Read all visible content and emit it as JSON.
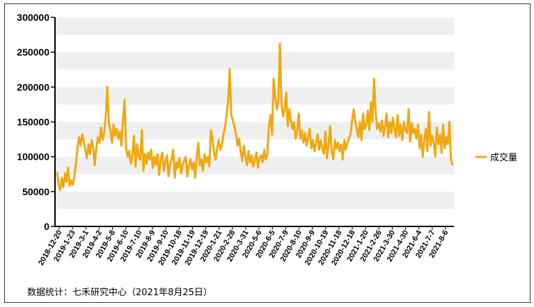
{
  "source_note": "数据统计：七禾研究中心（2021年8月25日）",
  "colors": {
    "series": "#f0a811",
    "band": "#efefef",
    "axis": "#000000"
  },
  "chart_data": {
    "type": "line",
    "title": "",
    "xlabel": "",
    "ylabel": "",
    "ylim": [
      0,
      300000
    ],
    "yticks": [
      "0",
      "50000",
      "100000",
      "150000",
      "200000",
      "250000",
      "300000"
    ],
    "xtick_labels": [
      "2018-12-20",
      "2019-1-23",
      "2019-3-1",
      "2019-4-2",
      "2019-5-8",
      "2019-6-10",
      "2019-7-10",
      "2019-8-9",
      "2019-9-10",
      "2019-10-18",
      "2019-11-19",
      "2019-12-19",
      "2020-1-21",
      "2020-2-28",
      "2020-3-31",
      "2020-5-6",
      "2020-6-5",
      "2020-7-9",
      "2020-8-10",
      "2020-9-9",
      "2020-10-19",
      "2020-11-18",
      "2020-12-18",
      "2021-1-20",
      "2021-2-26",
      "2021-3-30",
      "2021-4-30",
      "2021-6-4",
      "2021-7-7",
      "2021-8-6"
    ],
    "legend": "right",
    "grid": "horizontal bands",
    "series": [
      {
        "name": "成交量",
        "values": [
          78000,
          60000,
          52000,
          70000,
          56000,
          76000,
          64000,
          84000,
          58000,
          66000,
          60000,
          72000,
          90000,
          112000,
          128000,
          116000,
          132000,
          122000,
          110000,
          98000,
          118000,
          104000,
          124000,
          114000,
          88000,
          112000,
          128000,
          120000,
          142000,
          124000,
          134000,
          158000,
          200000,
          148000,
          138000,
          120000,
          146000,
          130000,
          140000,
          126000,
          136000,
          116000,
          152000,
          182000,
          112000,
          100000,
          108000,
          90000,
          102000,
          130000,
          86000,
          118000,
          100000,
          96000,
          138000,
          80000,
          104000,
          90000,
          106000,
          96000,
          110000,
          84000,
          100000,
          88000,
          104000,
          74000,
          96000,
          106000,
          80000,
          92000,
          102000,
          72000,
          90000,
          96000,
          110000,
          70000,
          92000,
          84000,
          98000,
          76000,
          88000,
          94000,
          100000,
          72000,
          86000,
          96000,
          82000,
          92000,
          70000,
          100000,
          120000,
          88000,
          96000,
          80000,
          104000,
          92000,
          100000,
          86000,
          138000,
          126000,
          106000,
          96000,
          112000,
          124000,
          110000,
          116000,
          132000,
          142000,
          160000,
          180000,
          226000,
          160000,
          152000,
          144000,
          132000,
          116000,
          126000,
          108000,
          94000,
          116000,
          100000,
          88000,
          108000,
          92000,
          102000,
          86000,
          96000,
          106000,
          84000,
          98000,
          102000,
          92000,
          110000,
          96000,
          104000,
          144000,
          160000,
          132000,
          212000,
          186000,
          168000,
          178000,
          262000,
          176000,
          158000,
          168000,
          192000,
          144000,
          168000,
          152000,
          140000,
          150000,
          126000,
          138000,
          162000,
          126000,
          138000,
          120000,
          134000,
          116000,
          128000,
          140000,
          112000,
          124000,
          108000,
          120000,
          132000,
          110000,
          124000,
          112000,
          104000,
          136000,
          98000,
          116000,
          144000,
          108000,
          96000,
          124000,
          112000,
          120000,
          108000,
          118000,
          96000,
          124000,
          110000,
          120000,
          126000,
          132000,
          152000,
          168000,
          150000,
          140000,
          128000,
          150000,
          124000,
          162000,
          140000,
          146000,
          166000,
          138000,
          178000,
          150000,
          212000,
          162000,
          140000,
          148000,
          136000,
          152000,
          130000,
          144000,
          162000,
          128000,
          150000,
          134000,
          156000,
          140000,
          128000,
          160000,
          130000,
          146000,
          124000,
          150000,
          138000,
          134000,
          168000,
          122000,
          148000,
          134000,
          140000,
          126000,
          146000,
          112000,
          132000,
          100000,
          124000,
          140000,
          108000,
          164000,
          116000,
          130000,
          120000,
          100000,
          142000,
          118000,
          132000,
          106000,
          146000,
          112000,
          128000,
          118000,
          150000,
          96000,
          88000
        ]
      }
    ]
  }
}
